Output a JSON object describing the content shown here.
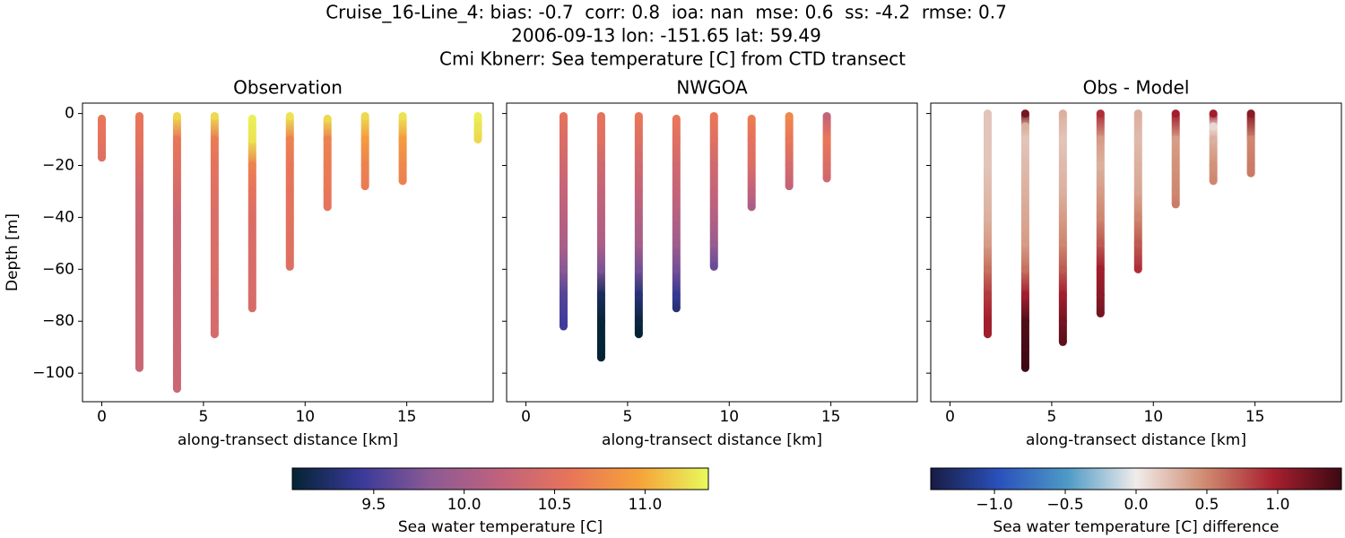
{
  "title_lines": [
    "Cruise_16-Line_4: bias: -0.7  corr: 0.8  ioa: nan  mse: 0.6  ss: -4.2  rmse: 0.7",
    "2006-09-13 lon: -151.65 lat: 59.49",
    "Cmi Kbnerr: Sea temperature [C] from CTD transect"
  ],
  "chart_data": [
    {
      "type": "scatter",
      "title": "Observation",
      "xlabel": "along-transect distance [km]",
      "ylabel": "Depth [m]",
      "xlim": [
        -0.95,
        19.25
      ],
      "ylim": [
        -111,
        4
      ],
      "xticks": [
        0,
        5,
        10,
        15
      ],
      "yticks": [
        {
          "value": 0,
          "label": "0"
        },
        {
          "value": -20,
          "label": "−20"
        },
        {
          "value": -40,
          "label": "−40"
        },
        {
          "value": -60,
          "label": "−60"
        },
        {
          "value": -80,
          "label": "−80"
        },
        {
          "value": -100,
          "label": "−100"
        }
      ],
      "colorbar": {
        "label": "Sea water temperature [C]",
        "clim": [
          9.05,
          11.35
        ],
        "ticks": [
          9.5,
          {
            "value": 10,
            "label": "10.0"
          },
          10.5,
          {
            "value": 11,
            "label": "11.0"
          }
        ],
        "colormap": [
          "#042333",
          "#3a3a9a",
          "#8d5a94",
          "#c0627d",
          "#e8745a",
          "#f6a23a",
          "#e8fa5b"
        ]
      },
      "stations": [
        {
          "x": 0,
          "depth": [
            -2,
            -10,
            -17
          ],
          "values": [
            10.6,
            10.55,
            10.5
          ]
        },
        {
          "x": 1.85,
          "depth": [
            -1,
            -10,
            -20,
            -30,
            -40,
            -50,
            -60,
            -70,
            -80,
            -90,
            -98
          ],
          "values": [
            10.6,
            10.55,
            10.45,
            10.35,
            10.3,
            10.3,
            10.3,
            10.3,
            10.3,
            10.3,
            10.3
          ]
        },
        {
          "x": 3.7,
          "depth": [
            -1,
            -10,
            -20,
            -30,
            -40,
            -50,
            -60,
            -70,
            -80,
            -90,
            -100,
            -106
          ],
          "values": [
            11.2,
            10.6,
            10.5,
            10.4,
            10.3,
            10.3,
            10.3,
            10.3,
            10.3,
            10.3,
            10.3,
            10.3
          ]
        },
        {
          "x": 5.55,
          "depth": [
            -1,
            -10,
            -20,
            -30,
            -40,
            -50,
            -60,
            -70,
            -80,
            -85
          ],
          "values": [
            11.2,
            10.65,
            10.55,
            10.5,
            10.45,
            10.45,
            10.45,
            10.4,
            10.4,
            10.4
          ]
        },
        {
          "x": 7.4,
          "depth": [
            -2,
            -10,
            -20,
            -30,
            -40,
            -50,
            -60,
            -70,
            -75
          ],
          "values": [
            11.3,
            11.25,
            10.7,
            10.55,
            10.45,
            10.44,
            10.43,
            10.42,
            10.41
          ]
        },
        {
          "x": 9.25,
          "depth": [
            -1,
            -10,
            -20,
            -30,
            -40,
            -50,
            -59
          ],
          "values": [
            11.25,
            10.7,
            10.6,
            10.55,
            10.54,
            10.5,
            10.49
          ]
        },
        {
          "x": 11.1,
          "depth": [
            -2,
            -10,
            -20,
            -30,
            -36
          ],
          "values": [
            11.2,
            10.7,
            10.65,
            10.6,
            10.55
          ]
        },
        {
          "x": 12.95,
          "depth": [
            -1,
            -10,
            -20,
            -28
          ],
          "values": [
            11.2,
            10.9,
            10.7,
            10.65
          ]
        },
        {
          "x": 14.8,
          "depth": [
            -1,
            -10,
            -20,
            -26
          ],
          "values": [
            11.25,
            10.9,
            10.75,
            10.7
          ]
        },
        {
          "x": 18.5,
          "depth": [
            -1,
            -5,
            -10
          ],
          "values": [
            11.3,
            11.25,
            11.2
          ]
        }
      ]
    },
    {
      "type": "scatter",
      "title": "NWGOA",
      "xlabel": "along-transect distance [km]",
      "xlim": [
        -0.95,
        19.25
      ],
      "ylim": [
        -111,
        4
      ],
      "xticks": [
        0,
        5,
        10,
        15
      ],
      "yticks": [
        0,
        -20,
        -40,
        -60,
        -80,
        -100
      ],
      "ytick_labels": false,
      "stations": [
        {
          "x": 1.85,
          "depth": [
            -1,
            -10,
            -20,
            -30,
            -40,
            -50,
            -60,
            -70,
            -82
          ],
          "values": [
            10.55,
            10.45,
            10.35,
            10.25,
            10.15,
            10.05,
            9.8,
            9.55,
            9.45
          ]
        },
        {
          "x": 3.7,
          "depth": [
            -1,
            -10,
            -20,
            -30,
            -40,
            -50,
            -60,
            -70,
            -80,
            -90,
            -94
          ],
          "values": [
            10.55,
            10.5,
            10.35,
            10.25,
            10.15,
            10.05,
            9.75,
            9.2,
            9.07,
            9.06,
            9.05
          ]
        },
        {
          "x": 5.55,
          "depth": [
            -1,
            -10,
            -20,
            -30,
            -40,
            -50,
            -60,
            -70,
            -80,
            -85
          ],
          "values": [
            10.6,
            10.5,
            10.35,
            10.25,
            10.1,
            10.0,
            9.7,
            9.3,
            9.1,
            9.05
          ]
        },
        {
          "x": 7.4,
          "depth": [
            -2,
            -10,
            -20,
            -30,
            -40,
            -50,
            -60,
            -70,
            -75
          ],
          "values": [
            10.6,
            10.5,
            10.35,
            10.25,
            10.1,
            9.95,
            9.7,
            9.4,
            9.3
          ]
        },
        {
          "x": 9.25,
          "depth": [
            -1,
            -10,
            -20,
            -30,
            -40,
            -50,
            -59
          ],
          "values": [
            10.6,
            10.5,
            10.35,
            10.25,
            10.1,
            9.9,
            9.65
          ]
        },
        {
          "x": 11.1,
          "depth": [
            -2,
            -10,
            -20,
            -30,
            -36
          ],
          "values": [
            10.65,
            10.55,
            10.45,
            10.2,
            10.05
          ]
        },
        {
          "x": 12.95,
          "depth": [
            -1,
            -10,
            -20,
            -28
          ],
          "values": [
            10.75,
            10.6,
            10.4,
            10.25
          ]
        },
        {
          "x": 14.8,
          "depth": [
            -1,
            -10,
            -20,
            -25
          ],
          "values": [
            10.25,
            10.6,
            10.45,
            10.35
          ]
        }
      ]
    },
    {
      "type": "scatter",
      "title": "Obs - Model",
      "xlabel": "along-transect distance [km]",
      "xlim": [
        -0.95,
        19.25
      ],
      "ylim": [
        -111,
        4
      ],
      "xticks": [
        0,
        5,
        10,
        15
      ],
      "yticks": [
        0,
        -20,
        -40,
        -60,
        -80,
        -100
      ],
      "ytick_labels": false,
      "colorbar": {
        "label": "Sea water temperature [C] difference",
        "clim": [
          -1.45,
          1.45
        ],
        "ticks": [
          {
            "value": -1,
            "label": "−1.0"
          },
          {
            "value": -0.5,
            "label": "−0.5"
          },
          {
            "value": 0,
            "label": "0.0"
          },
          0.5,
          {
            "value": 1,
            "label": "1.0"
          }
        ],
        "colormap": [
          "#181c43",
          "#2a51bc",
          "#4e9ac6",
          "#f0eceb",
          "#d08b71",
          "#a8202f",
          "#3c0912"
        ]
      },
      "stations": [
        {
          "x": 1.85,
          "depth": [
            0,
            -10,
            -20,
            -30,
            -40,
            -50,
            -60,
            -70,
            -80,
            -85
          ],
          "values": [
            0.2,
            0.2,
            0.2,
            0.25,
            0.3,
            0.4,
            0.6,
            0.85,
            1.0,
            1.0
          ]
        },
        {
          "x": 3.7,
          "depth": [
            0,
            -5,
            -10,
            -20,
            -30,
            -40,
            -50,
            -60,
            -70,
            -80,
            -90,
            -98
          ],
          "values": [
            1.2,
            0.3,
            0.2,
            0.25,
            0.3,
            0.35,
            0.4,
            0.6,
            1.0,
            1.35,
            1.4,
            1.45
          ]
        },
        {
          "x": 5.55,
          "depth": [
            0,
            -10,
            -20,
            -30,
            -40,
            -50,
            -60,
            -70,
            -80,
            -88
          ],
          "values": [
            0.3,
            0.2,
            0.25,
            0.3,
            0.4,
            0.5,
            0.7,
            1.0,
            1.2,
            1.3
          ]
        },
        {
          "x": 7.4,
          "depth": [
            0,
            -10,
            -20,
            -30,
            -40,
            -50,
            -60,
            -70,
            -77
          ],
          "values": [
            0.9,
            0.4,
            0.3,
            0.4,
            0.5,
            0.7,
            1.0,
            1.1,
            1.2
          ]
        },
        {
          "x": 9.25,
          "depth": [
            0,
            -10,
            -20,
            -30,
            -40,
            -50,
            -60
          ],
          "values": [
            0.3,
            0.25,
            0.3,
            0.35,
            0.5,
            0.7,
            0.9
          ]
        },
        {
          "x": 11.1,
          "depth": [
            0,
            -10,
            -20,
            -30,
            -35
          ],
          "values": [
            1.0,
            0.4,
            0.45,
            0.5,
            0.55
          ]
        },
        {
          "x": 12.95,
          "depth": [
            0,
            -5,
            -10,
            -20,
            -26
          ],
          "values": [
            1.0,
            0.1,
            0.3,
            0.45,
            0.5
          ]
        },
        {
          "x": 14.8,
          "depth": [
            0,
            -10,
            -20,
            -23
          ],
          "values": [
            1.1,
            0.5,
            0.55,
            0.56
          ]
        }
      ]
    }
  ]
}
